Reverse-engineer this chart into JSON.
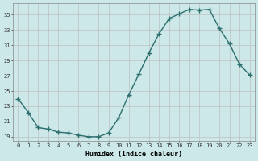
{
  "x": [
    0,
    1,
    2,
    3,
    4,
    5,
    6,
    7,
    8,
    9,
    10,
    11,
    12,
    13,
    14,
    15,
    16,
    17,
    18,
    19,
    20,
    21,
    22,
    23
  ],
  "y": [
    24.0,
    22.2,
    20.2,
    20.0,
    19.6,
    19.5,
    19.2,
    19.0,
    19.0,
    19.5,
    21.5,
    24.5,
    27.2,
    30.0,
    32.5,
    34.5,
    35.1,
    35.7,
    35.6,
    35.7,
    33.2,
    31.2,
    28.5,
    27.1
  ],
  "xlabel": "Humidex (Indice chaleur)",
  "ylim": [
    18.5,
    36.5
  ],
  "xlim": [
    -0.5,
    23.5
  ],
  "yticks": [
    19,
    21,
    23,
    25,
    27,
    29,
    31,
    33,
    35
  ],
  "xtick_labels": [
    "0",
    "1",
    "2",
    "3",
    "4",
    "5",
    "6",
    "7",
    "8",
    "9",
    "10",
    "11",
    "12",
    "13",
    "14",
    "15",
    "16",
    "17",
    "18",
    "19",
    "20",
    "21",
    "22",
    "23"
  ],
  "line_color": "#2d6e6e",
  "marker": "D",
  "marker_size": 2.5,
  "bg_color": "#cce8e8",
  "grid_color": "#c0c0c0",
  "font_family": "monospace"
}
